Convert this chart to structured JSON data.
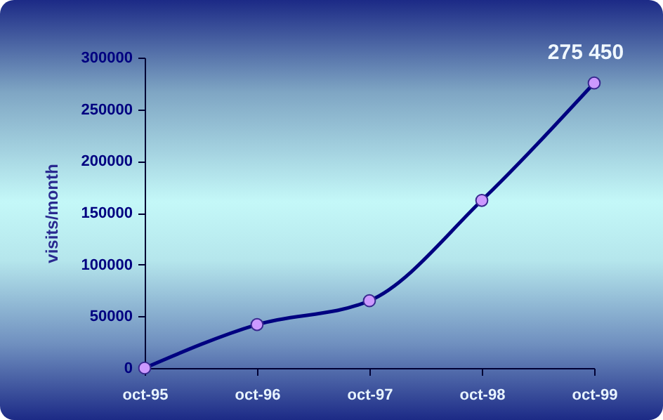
{
  "chart_data": {
    "type": "line",
    "ylabel": "visits/month",
    "categories": [
      "oct-95",
      "oct-96",
      "oct-97",
      "oct-98",
      "oct-99"
    ],
    "series": [
      {
        "color": "#000080",
        "values": [
          0,
          42000,
          65000,
          162000,
          275450
        ],
        "value_labels": [
          null,
          null,
          null,
          null,
          "275 450"
        ]
      }
    ],
    "ylim": [
      0,
      300000
    ],
    "yticks": [
      0,
      50000,
      100000,
      150000,
      200000,
      250000,
      300000
    ],
    "grid": false,
    "legend": false,
    "marker": "circle",
    "line_style": "solid"
  }
}
